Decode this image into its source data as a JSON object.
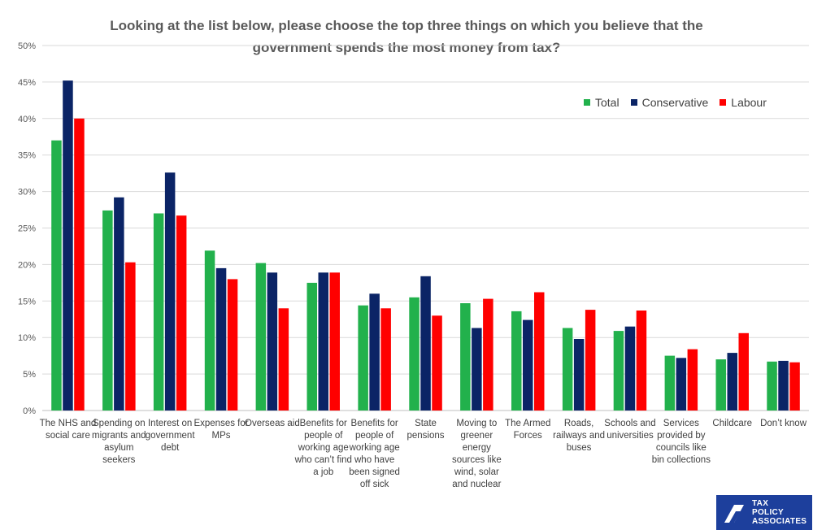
{
  "chart_data": {
    "type": "bar",
    "title_line1": "Looking at the list below, please choose the top three things on which you believe that the",
    "title_line2": "government spends the most money from tax?",
    "xlabel": "",
    "ylabel": "",
    "ylim": [
      0,
      50
    ],
    "yticks": [
      "0%",
      "5%",
      "10%",
      "15%",
      "20%",
      "25%",
      "30%",
      "35%",
      "40%",
      "45%",
      "50%"
    ],
    "legend_position": "top-right",
    "categories": [
      "The NHS and social care",
      "Spending on migrants and asylum seekers",
      "Interest on government debt",
      "Expenses for MPs",
      "Overseas aid",
      "Benefits for people of working age who can’t find a job",
      "Benefits for people of working age who have been signed off sick",
      "State pensions",
      "Moving to greener energy sources like wind, solar and nuclear",
      "The Armed Forces",
      "Roads, railways and buses",
      "Schools and universities",
      "Services provided by councils like bin collections",
      "Childcare",
      "Don’t know"
    ],
    "series": [
      {
        "name": "Total",
        "color": "#22b14c",
        "values": [
          37.0,
          27.4,
          27.0,
          21.9,
          20.2,
          17.5,
          14.4,
          15.5,
          14.7,
          13.6,
          11.3,
          10.9,
          7.5,
          7.0,
          6.7
        ]
      },
      {
        "name": "Conservative",
        "color": "#0b2466",
        "values": [
          45.2,
          29.2,
          32.6,
          19.5,
          18.9,
          18.9,
          16.0,
          18.4,
          11.3,
          12.4,
          9.8,
          11.5,
          7.2,
          7.9,
          6.8
        ]
      },
      {
        "name": "Labour",
        "color": "#ff0000",
        "values": [
          40.0,
          20.3,
          26.7,
          18.0,
          14.0,
          18.9,
          14.0,
          13.0,
          15.3,
          16.2,
          13.8,
          13.7,
          8.4,
          10.6,
          6.6
        ]
      }
    ]
  },
  "logo": {
    "line1": "TAX",
    "line2": "POLICY",
    "line3": "ASSOCIATES"
  }
}
